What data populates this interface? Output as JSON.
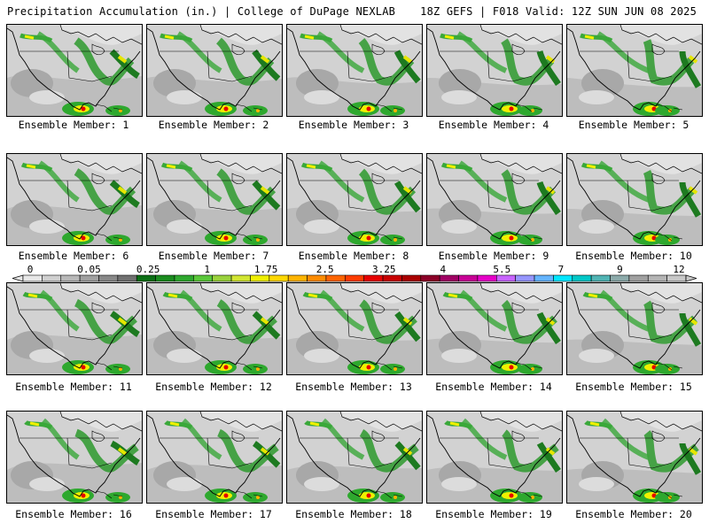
{
  "header": {
    "title_left": "Precipitation Accumulation (in.) | College of DuPage NEXLAB",
    "title_right": "18Z GEFS | F018 Valid: 12Z SUN JUN 08 2025"
  },
  "members": [
    {
      "label": "Ensemble Member: 1"
    },
    {
      "label": "Ensemble Member: 2"
    },
    {
      "label": "Ensemble Member: 3"
    },
    {
      "label": "Ensemble Member: 4"
    },
    {
      "label": "Ensemble Member: 5"
    },
    {
      "label": "Ensemble Member: 6"
    },
    {
      "label": "Ensemble Member: 7"
    },
    {
      "label": "Ensemble Member: 8"
    },
    {
      "label": "Ensemble Member: 9"
    },
    {
      "label": "Ensemble Member: 10"
    },
    {
      "label": "Ensemble Member: 11"
    },
    {
      "label": "Ensemble Member: 12"
    },
    {
      "label": "Ensemble Member: 13"
    },
    {
      "label": "Ensemble Member: 14"
    },
    {
      "label": "Ensemble Member: 15"
    },
    {
      "label": "Ensemble Member: 16"
    },
    {
      "label": "Ensemble Member: 17"
    },
    {
      "label": "Ensemble Member: 18"
    },
    {
      "label": "Ensemble Member: 19"
    },
    {
      "label": "Ensemble Member: 20"
    }
  ],
  "colorbar": {
    "labels": [
      "0",
      "0.05",
      "0.25",
      "1",
      "1.75",
      "2.5",
      "3.25",
      "4",
      "5.5",
      "7",
      "9",
      "12"
    ],
    "colors": [
      "#e8e8e8",
      "#d0d0d0",
      "#b8b8b8",
      "#a0a0a0",
      "#888888",
      "#707070",
      "#0a6e14",
      "#1a8c1e",
      "#2ea82e",
      "#5ac83a",
      "#9ad23c",
      "#d2e632",
      "#f0f000",
      "#ffd800",
      "#ffb400",
      "#ff8c00",
      "#ff6400",
      "#ff3c00",
      "#e60000",
      "#c80000",
      "#aa0000",
      "#8c0028",
      "#a00064",
      "#c80096",
      "#e600c8",
      "#c864ff",
      "#9696ff",
      "#64b4ff",
      "#00e6ff",
      "#00c8c8",
      "#50b4b4",
      "#8caaaa",
      "#a0a0a0",
      "#b4b4b4",
      "#c8c8c8"
    ]
  }
}
